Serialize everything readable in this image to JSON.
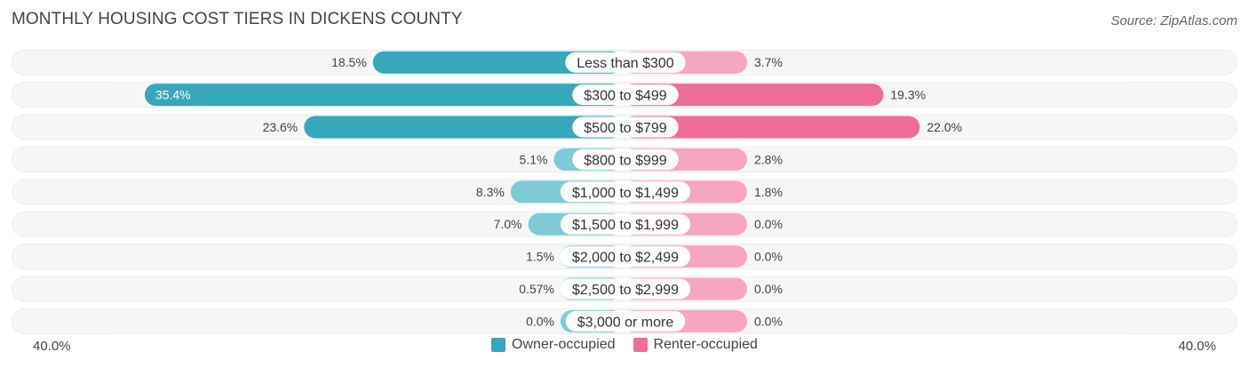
{
  "title": "MONTHLY HOUSING COST TIERS IN DICKENS COUNTY",
  "source": "Source: ZipAtlas.com",
  "colors": {
    "owner": "#37a7bb",
    "owner_light": "#7ccbd6",
    "renter": "#f06d97",
    "renter_light": "#f7a6c1",
    "row_bg": "#f0f0f0"
  },
  "chart_data": {
    "type": "bar",
    "orientation": "horizontal-diverging",
    "title": "MONTHLY HOUSING COST TIERS IN DICKENS COUNTY",
    "categories": [
      "Less than $300",
      "$300 to $499",
      "$500 to $799",
      "$800 to $999",
      "$1,000 to $1,499",
      "$1,500 to $1,999",
      "$2,000 to $2,499",
      "$2,500 to $2,999",
      "$3,000 or more"
    ],
    "series": [
      {
        "name": "Owner-occupied",
        "values": [
          18.5,
          35.4,
          23.6,
          5.1,
          8.3,
          7.0,
          1.5,
          0.57,
          0.0
        ],
        "labels": [
          "18.5%",
          "35.4%",
          "23.6%",
          "5.1%",
          "8.3%",
          "7.0%",
          "1.5%",
          "0.57%",
          "0.0%"
        ]
      },
      {
        "name": "Renter-occupied",
        "values": [
          3.7,
          19.3,
          22.0,
          2.8,
          1.8,
          0.0,
          0.0,
          0.0,
          0.0
        ],
        "labels": [
          "3.7%",
          "19.3%",
          "22.0%",
          "2.8%",
          "1.8%",
          "0.0%",
          "0.0%",
          "0.0%",
          "0.0%"
        ]
      }
    ],
    "axis": {
      "left_label": "40.0%",
      "right_label": "40.0%",
      "max": 40.0
    },
    "legend_position": "bottom-center"
  }
}
